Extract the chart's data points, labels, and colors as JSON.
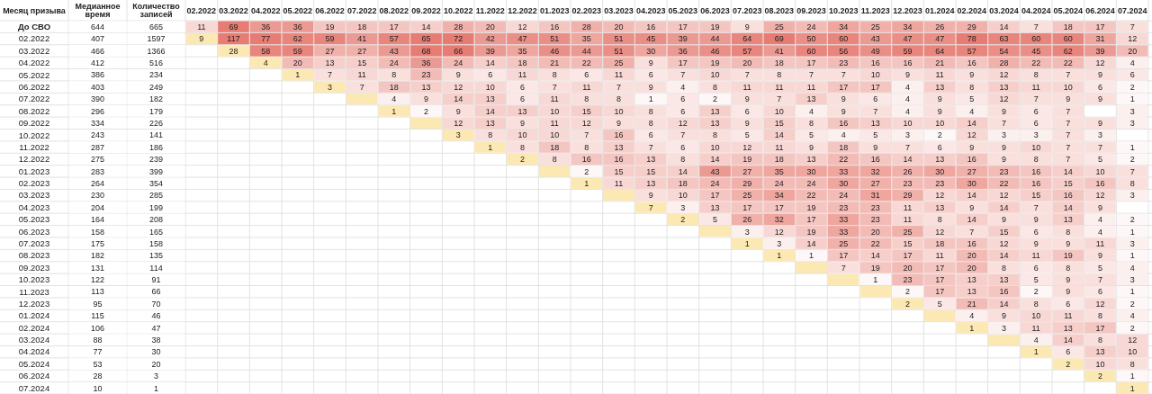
{
  "chart_data": {
    "type": "heatmap",
    "ylabel": "Месяц призыва",
    "categories": [
      "Медианное время",
      "Количество записей",
      "02.2022",
      "03.2022",
      "04.2022",
      "05.2022",
      "06.2022",
      "07.2022",
      "08.2022",
      "09.2022",
      "10.2022",
      "11.2022",
      "12.2022",
      "01.2023",
      "02.2023",
      "03.2023",
      "04.2023",
      "05.2023",
      "06.2023",
      "07.2023",
      "08.2023",
      "09.2023",
      "10.2023",
      "11.2023",
      "12.2023",
      "01.2024",
      "02.2024",
      "03.2024",
      "04.2024",
      "05.2024",
      "06.2024",
      "07.2024"
    ],
    "y_categories": [
      "До СВО",
      "02.2022",
      "03.2022",
      "04.2022",
      "05.2022",
      "06.2022",
      "07.2022",
      "08.2022",
      "09.2022",
      "10.2022",
      "11.2022",
      "12.2022",
      "01.2023",
      "02.2023",
      "03.2023",
      "04.2023",
      "05.2023",
      "06.2023",
      "07.2023",
      "08.2023",
      "09.2023",
      "10.2023",
      "11.2023",
      "12.2023",
      "01.2024",
      "02.2024",
      "03.2024",
      "04.2024",
      "05.2024",
      "06.2024",
      "07.2024"
    ],
    "cells": [
      [
        644,
        665,
        11,
        69,
        36,
        36,
        19,
        18,
        17,
        14,
        28,
        20,
        12,
        16,
        28,
        20,
        16,
        17,
        19,
        9,
        25,
        24,
        34,
        25,
        34,
        26,
        29,
        14,
        7,
        18,
        17,
        7
      ],
      [
        407,
        1597,
        9,
        117,
        77,
        62,
        59,
        41,
        57,
        65,
        72,
        42,
        47,
        51,
        35,
        51,
        45,
        39,
        44,
        64,
        69,
        50,
        60,
        43,
        47,
        47,
        78,
        63,
        60,
        60,
        31,
        12
      ],
      [
        466,
        1366,
        null,
        28,
        58,
        59,
        27,
        27,
        43,
        68,
        66,
        39,
        35,
        46,
        44,
        51,
        30,
        36,
        46,
        57,
        41,
        60,
        56,
        49,
        59,
        64,
        57,
        54,
        45,
        62,
        39,
        20
      ],
      [
        412,
        516,
        null,
        null,
        4,
        20,
        13,
        15,
        24,
        36,
        24,
        14,
        18,
        21,
        22,
        25,
        9,
        17,
        19,
        20,
        18,
        17,
        23,
        16,
        16,
        21,
        16,
        28,
        22,
        22,
        12,
        4
      ],
      [
        386,
        234,
        null,
        null,
        null,
        1,
        7,
        11,
        8,
        23,
        9,
        6,
        11,
        8,
        6,
        11,
        6,
        7,
        10,
        7,
        8,
        7,
        7,
        10,
        9,
        11,
        9,
        12,
        8,
        7,
        9,
        6
      ],
      [
        403,
        249,
        null,
        null,
        null,
        null,
        3,
        7,
        18,
        13,
        12,
        10,
        6,
        7,
        11,
        7,
        9,
        4,
        8,
        11,
        11,
        11,
        17,
        17,
        4,
        13,
        8,
        13,
        11,
        10,
        6,
        2
      ],
      [
        390,
        182,
        null,
        null,
        null,
        null,
        null,
        null,
        4,
        9,
        14,
        13,
        6,
        11,
        8,
        8,
        1,
        6,
        2,
        9,
        7,
        13,
        9,
        6,
        4,
        9,
        5,
        12,
        7,
        9,
        9,
        1
      ],
      [
        296,
        179,
        null,
        null,
        null,
        null,
        null,
        null,
        1,
        2,
        9,
        14,
        13,
        10,
        15,
        10,
        8,
        6,
        13,
        6,
        10,
        4,
        9,
        7,
        4,
        9,
        4,
        9,
        6,
        7,
        null,
        3
      ],
      [
        334,
        226,
        null,
        null,
        null,
        null,
        null,
        null,
        null,
        null,
        12,
        13,
        9,
        11,
        12,
        9,
        8,
        12,
        13,
        9,
        15,
        8,
        16,
        13,
        10,
        10,
        14,
        7,
        6,
        7,
        9,
        3
      ],
      [
        243,
        141,
        null,
        null,
        null,
        null,
        null,
        null,
        null,
        null,
        3,
        8,
        10,
        10,
        7,
        16,
        6,
        7,
        8,
        5,
        14,
        5,
        4,
        5,
        3,
        2,
        12,
        3,
        3,
        7,
        3,
        null
      ],
      [
        287,
        186,
        null,
        null,
        null,
        null,
        null,
        null,
        null,
        null,
        null,
        1,
        8,
        18,
        8,
        13,
        7,
        6,
        10,
        12,
        11,
        9,
        18,
        9,
        7,
        6,
        9,
        9,
        10,
        7,
        7,
        1
      ],
      [
        275,
        239,
        null,
        null,
        null,
        null,
        null,
        null,
        null,
        null,
        null,
        null,
        2,
        8,
        16,
        16,
        13,
        8,
        14,
        19,
        18,
        13,
        22,
        16,
        14,
        13,
        16,
        9,
        8,
        7,
        5,
        2
      ],
      [
        283,
        399,
        null,
        null,
        null,
        null,
        null,
        null,
        null,
        null,
        null,
        null,
        null,
        null,
        2,
        15,
        15,
        14,
        43,
        27,
        35,
        30,
        33,
        32,
        26,
        30,
        27,
        23,
        16,
        14,
        10,
        7
      ],
      [
        264,
        354,
        null,
        null,
        null,
        null,
        null,
        null,
        null,
        null,
        null,
        null,
        null,
        null,
        1,
        11,
        13,
        18,
        24,
        29,
        24,
        24,
        30,
        27,
        23,
        23,
        30,
        22,
        16,
        15,
        16,
        8
      ],
      [
        230,
        285,
        null,
        null,
        null,
        null,
        null,
        null,
        null,
        null,
        null,
        null,
        null,
        null,
        null,
        null,
        9,
        10,
        17,
        25,
        34,
        22,
        24,
        31,
        29,
        12,
        14,
        12,
        15,
        16,
        12,
        3
      ],
      [
        204,
        199,
        null,
        null,
        null,
        null,
        null,
        null,
        null,
        null,
        null,
        null,
        null,
        null,
        null,
        null,
        7,
        3,
        13,
        17,
        17,
        19,
        23,
        23,
        11,
        13,
        9,
        14,
        7,
        14,
        9,
        null
      ],
      [
        164,
        208,
        null,
        null,
        null,
        null,
        null,
        null,
        null,
        null,
        null,
        null,
        null,
        null,
        null,
        null,
        null,
        2,
        5,
        26,
        32,
        17,
        33,
        23,
        11,
        8,
        14,
        9,
        9,
        13,
        4,
        2
      ],
      [
        158,
        165,
        null,
        null,
        null,
        null,
        null,
        null,
        null,
        null,
        null,
        null,
        null,
        null,
        null,
        null,
        null,
        null,
        null,
        3,
        12,
        19,
        33,
        20,
        25,
        12,
        7,
        15,
        6,
        8,
        4,
        1
      ],
      [
        175,
        158,
        null,
        null,
        null,
        null,
        null,
        null,
        null,
        null,
        null,
        null,
        null,
        null,
        null,
        null,
        null,
        null,
        null,
        1,
        3,
        14,
        25,
        22,
        15,
        18,
        16,
        12,
        9,
        9,
        11,
        3
      ],
      [
        182,
        135,
        null,
        null,
        null,
        null,
        null,
        null,
        null,
        null,
        null,
        null,
        null,
        null,
        null,
        null,
        null,
        null,
        null,
        null,
        1,
        1,
        17,
        14,
        17,
        11,
        20,
        14,
        11,
        19,
        9,
        1
      ],
      [
        131,
        114,
        null,
        null,
        null,
        null,
        null,
        null,
        null,
        null,
        null,
        null,
        null,
        null,
        null,
        null,
        null,
        null,
        null,
        null,
        null,
        null,
        7,
        19,
        20,
        17,
        20,
        8,
        6,
        8,
        5,
        4
      ],
      [
        122,
        91,
        null,
        null,
        null,
        null,
        null,
        null,
        null,
        null,
        null,
        null,
        null,
        null,
        null,
        null,
        null,
        null,
        null,
        null,
        null,
        null,
        null,
        1,
        23,
        17,
        13,
        13,
        5,
        9,
        7,
        3
      ],
      [
        113,
        66,
        null,
        null,
        null,
        null,
        null,
        null,
        null,
        null,
        null,
        null,
        null,
        null,
        null,
        null,
        null,
        null,
        null,
        null,
        null,
        null,
        null,
        null,
        2,
        17,
        13,
        16,
        2,
        9,
        6,
        1
      ],
      [
        95,
        70,
        null,
        null,
        null,
        null,
        null,
        null,
        null,
        null,
        null,
        null,
        null,
        null,
        null,
        null,
        null,
        null,
        null,
        null,
        null,
        null,
        null,
        null,
        2,
        5,
        21,
        14,
        8,
        6,
        12,
        2
      ],
      [
        115,
        46,
        null,
        null,
        null,
        null,
        null,
        null,
        null,
        null,
        null,
        null,
        null,
        null,
        null,
        null,
        null,
        null,
        null,
        null,
        null,
        null,
        null,
        null,
        null,
        null,
        4,
        9,
        10,
        11,
        8,
        4
      ],
      [
        106,
        47,
        null,
        null,
        null,
        null,
        null,
        null,
        null,
        null,
        null,
        null,
        null,
        null,
        null,
        null,
        null,
        null,
        null,
        null,
        null,
        null,
        null,
        null,
        null,
        null,
        1,
        3,
        11,
        13,
        17,
        2
      ],
      [
        88,
        38,
        null,
        null,
        null,
        null,
        null,
        null,
        null,
        null,
        null,
        null,
        null,
        null,
        null,
        null,
        null,
        null,
        null,
        null,
        null,
        null,
        null,
        null,
        null,
        null,
        null,
        null,
        4,
        14,
        8,
        12
      ],
      [
        77,
        30,
        null,
        null,
        null,
        null,
        null,
        null,
        null,
        null,
        null,
        null,
        null,
        null,
        null,
        null,
        null,
        null,
        null,
        null,
        null,
        null,
        null,
        null,
        null,
        null,
        null,
        null,
        1,
        6,
        13,
        10
      ],
      [
        53,
        20,
        null,
        null,
        null,
        null,
        null,
        null,
        null,
        null,
        null,
        null,
        null,
        null,
        null,
        null,
        null,
        null,
        null,
        null,
        null,
        null,
        null,
        null,
        null,
        null,
        null,
        null,
        null,
        2,
        10,
        8
      ],
      [
        28,
        3,
        null,
        null,
        null,
        null,
        null,
        null,
        null,
        null,
        null,
        null,
        null,
        null,
        null,
        null,
        null,
        null,
        null,
        null,
        null,
        null,
        null,
        null,
        null,
        null,
        null,
        null,
        null,
        null,
        2,
        1
      ],
      [
        10,
        1,
        null,
        null,
        null,
        null,
        null,
        null,
        null,
        null,
        null,
        null,
        null,
        null,
        null,
        null,
        null,
        null,
        null,
        null,
        null,
        null,
        null,
        null,
        null,
        null,
        null,
        null,
        null,
        null,
        null,
        1
      ]
    ],
    "colors": [
      [
        "#ffffff",
        "#ffffff",
        "#f8d8d5",
        "#e67c73",
        "#eb9a93",
        "#eb9a93",
        "#f4c6c2",
        "#f4c6c2",
        "#f4c6c2",
        "#f6cfcb",
        "#f0b1ab",
        "#f2bbb6",
        "#f8d8d5",
        "#f4c6c2",
        "#f0b1ab",
        "#f2bbb6",
        "#f4c6c2",
        "#f4c6c2",
        "#f4c6c2",
        "#f9e0dd",
        "#f0b1ab",
        "#f2bbb6",
        "#eea69f",
        "#f0b1ab",
        "#eea69f",
        "#f0b1ab",
        "#f0b1ab",
        "#f6cfcb",
        "#f9e0dd",
        "#f4c6c2",
        "#f4c6c2",
        "#f9e0dd"
      ],
      [
        "#ffffff",
        "#ffffff",
        "#fce8b2",
        "#e67c73",
        "#e67c73",
        "#e8867d",
        "#e8867d",
        "#eb9a93",
        "#e8867d",
        "#e67c73",
        "#e67c73",
        "#eb9a93",
        "#e98f87",
        "#e98f87",
        "#eea69f",
        "#e98f87",
        "#e98f87",
        "#eb9a93",
        "#eb9a93",
        "#e8867d",
        "#e67c73",
        "#e98f87",
        "#e8867d",
        "#eb9a93",
        "#e98f87",
        "#e98f87",
        "#e67c73",
        "#e8867d",
        "#e8867d",
        "#e8867d",
        "#eea69f",
        "#f8d8d5"
      ],
      [
        "#ffffff",
        "#ffffff",
        null,
        "#fce8b2",
        "#e8867d",
        "#e8867d",
        "#f0b1ab",
        "#f0b1ab",
        "#eb9a93",
        "#e67c73",
        "#e67c73",
        "#eb9a93",
        "#eea69f",
        "#e98f87",
        "#eb9a93",
        "#e98f87",
        "#eea69f",
        "#eb9a93",
        "#e98f87",
        "#e8867d",
        "#eb9a93",
        "#e8867d",
        "#e8867d",
        "#e98f87",
        "#e8867d",
        "#e8867d",
        "#e8867d",
        "#e98f87",
        "#e98f87",
        "#e8867d",
        "#eb9a93",
        "#f2bbb6"
      ],
      [
        "#ffffff",
        "#ffffff",
        null,
        null,
        "#fce8b2",
        "#f2bbb6",
        "#f6cfcb",
        "#f6cfcb",
        "#f2bbb6",
        "#eb9a93",
        "#f2bbb6",
        "#f6cfcb",
        "#f4c6c2",
        "#f2bbb6",
        "#f2bbb6",
        "#f0b1ab",
        "#f9e0dd",
        "#f4c6c2",
        "#f4c6c2",
        "#f2bbb6",
        "#f4c6c2",
        "#f4c6c2",
        "#f2bbb6",
        "#f4c6c2",
        "#f4c6c2",
        "#f2bbb6",
        "#f4c6c2",
        "#f0b1ab",
        "#f2bbb6",
        "#f2bbb6",
        "#f8d8d5",
        "#fcf0ef"
      ],
      [
        "#ffffff",
        "#ffffff",
        null,
        null,
        null,
        "#fce8b2",
        "#f9e0dd",
        "#f8d8d5",
        "#f9e0dd",
        "#f2bbb6",
        "#f9e0dd",
        "#fbe8e6",
        "#f8d8d5",
        "#f9e0dd",
        "#fbe8e6",
        "#f8d8d5",
        "#fbe8e6",
        "#f9e0dd",
        "#f8d8d5",
        "#f9e0dd",
        "#f9e0dd",
        "#f9e0dd",
        "#f9e0dd",
        "#f8d8d5",
        "#f9e0dd",
        "#f8d8d5",
        "#f9e0dd",
        "#f8d8d5",
        "#f9e0dd",
        "#f9e0dd",
        "#f9e0dd",
        "#fbe8e6"
      ],
      [
        "#ffffff",
        "#ffffff",
        null,
        null,
        null,
        null,
        "#fce8b2",
        "#f9e0dd",
        "#f4c6c2",
        "#f6cfcb",
        "#f8d8d5",
        "#f8d8d5",
        "#fbe8e6",
        "#f9e0dd",
        "#f8d8d5",
        "#f9e0dd",
        "#f9e0dd",
        "#fcf0ef",
        "#f9e0dd",
        "#f8d8d5",
        "#f8d8d5",
        "#f8d8d5",
        "#f4c6c2",
        "#f4c6c2",
        "#fcf0ef",
        "#f6cfcb",
        "#f9e0dd",
        "#f6cfcb",
        "#f8d8d5",
        "#f8d8d5",
        "#fbe8e6",
        "#fdf8f7"
      ],
      [
        "#ffffff",
        "#ffffff",
        null,
        null,
        null,
        null,
        null,
        "#fce8b2",
        "#fcf0ef",
        "#f9e0dd",
        "#f6cfcb",
        "#f6cfcb",
        "#fbe8e6",
        "#f8d8d5",
        "#f9e0dd",
        "#f9e0dd",
        "#fdf8f7",
        "#fbe8e6",
        "#fdf8f7",
        "#f9e0dd",
        "#f9e0dd",
        "#f6cfcb",
        "#f9e0dd",
        "#fbe8e6",
        "#fcf0ef",
        "#f9e0dd",
        "#fbe8e6",
        "#f8d8d5",
        "#f9e0dd",
        "#f9e0dd",
        "#f9e0dd",
        "#fdf8f7"
      ],
      [
        "#ffffff",
        "#ffffff",
        null,
        null,
        null,
        null,
        null,
        null,
        "#fce8b2",
        "#fdf8f7",
        "#f9e0dd",
        "#f6cfcb",
        "#f6cfcb",
        "#f8d8d5",
        "#f6cfcb",
        "#f8d8d5",
        "#f9e0dd",
        "#fbe8e6",
        "#f6cfcb",
        "#fbe8e6",
        "#f8d8d5",
        "#fcf0ef",
        "#f9e0dd",
        "#f9e0dd",
        "#fcf0ef",
        "#f9e0dd",
        "#fcf0ef",
        "#f9e0dd",
        "#fbe8e6",
        "#f9e0dd",
        null,
        "#fcf0ef"
      ],
      [
        "#ffffff",
        "#ffffff",
        null,
        null,
        null,
        null,
        null,
        null,
        null,
        "#fce8b2",
        "#f8d8d5",
        "#f6cfcb",
        "#f9e0dd",
        "#f8d8d5",
        "#f8d8d5",
        "#f9e0dd",
        "#f9e0dd",
        "#f8d8d5",
        "#f6cfcb",
        "#f9e0dd",
        "#f6cfcb",
        "#f9e0dd",
        "#f4c6c2",
        "#f6cfcb",
        "#f8d8d5",
        "#f8d8d5",
        "#f6cfcb",
        "#f9e0dd",
        "#fbe8e6",
        "#f9e0dd",
        "#f9e0dd",
        "#fcf0ef"
      ],
      [
        "#ffffff",
        "#ffffff",
        null,
        null,
        null,
        null,
        null,
        null,
        null,
        null,
        "#fce8b2",
        "#f9e0dd",
        "#f8d8d5",
        "#f8d8d5",
        "#f9e0dd",
        "#f4c6c2",
        "#fbe8e6",
        "#f9e0dd",
        "#f9e0dd",
        "#fbe8e6",
        "#f6cfcb",
        "#fbe8e6",
        "#fcf0ef",
        "#fbe8e6",
        "#fcf0ef",
        "#fdf8f7",
        "#f8d8d5",
        "#fcf0ef",
        "#fcf0ef",
        "#f9e0dd",
        "#fcf0ef",
        null
      ],
      [
        "#ffffff",
        "#ffffff",
        null,
        null,
        null,
        null,
        null,
        null,
        null,
        null,
        null,
        "#fce8b2",
        "#f9e0dd",
        "#f4c6c2",
        "#f9e0dd",
        "#f6cfcb",
        "#f9e0dd",
        "#fbe8e6",
        "#f8d8d5",
        "#f8d8d5",
        "#f8d8d5",
        "#f9e0dd",
        "#f4c6c2",
        "#f9e0dd",
        "#f9e0dd",
        "#fbe8e6",
        "#f9e0dd",
        "#f9e0dd",
        "#f8d8d5",
        "#f9e0dd",
        "#f9e0dd",
        "#fdf8f7"
      ],
      [
        "#ffffff",
        "#ffffff",
        null,
        null,
        null,
        null,
        null,
        null,
        null,
        null,
        null,
        null,
        "#fce8b2",
        "#f9e0dd",
        "#f4c6c2",
        "#f4c6c2",
        "#f6cfcb",
        "#f9e0dd",
        "#f6cfcb",
        "#f4c6c2",
        "#f4c6c2",
        "#f6cfcb",
        "#f2bbb6",
        "#f4c6c2",
        "#f6cfcb",
        "#f6cfcb",
        "#f4c6c2",
        "#f9e0dd",
        "#f9e0dd",
        "#f9e0dd",
        "#fbe8e6",
        "#fdf8f7"
      ],
      [
        "#ffffff",
        "#ffffff",
        null,
        null,
        null,
        null,
        null,
        null,
        null,
        null,
        null,
        null,
        null,
        "#fce8b2",
        "#fdf8f7",
        "#f6cfcb",
        "#f6cfcb",
        "#f6cfcb",
        "#eb9a93",
        "#f0b1ab",
        "#eea69f",
        "#eea69f",
        "#eea69f",
        "#eea69f",
        "#f0b1ab",
        "#eea69f",
        "#f0b1ab",
        "#f2bbb6",
        "#f4c6c2",
        "#f6cfcb",
        "#f8d8d5",
        "#f9e0dd"
      ],
      [
        "#ffffff",
        "#ffffff",
        null,
        null,
        null,
        null,
        null,
        null,
        null,
        null,
        null,
        null,
        null,
        null,
        "#fce8b2",
        "#f8d8d5",
        "#f6cfcb",
        "#f4c6c2",
        "#f2bbb6",
        "#f0b1ab",
        "#f2bbb6",
        "#f2bbb6",
        "#eea69f",
        "#f0b1ab",
        "#f2bbb6",
        "#f2bbb6",
        "#eea69f",
        "#f2bbb6",
        "#f4c6c2",
        "#f6cfcb",
        "#f4c6c2",
        "#f9e0dd"
      ],
      [
        "#ffffff",
        "#ffffff",
        null,
        null,
        null,
        null,
        null,
        null,
        null,
        null,
        null,
        null,
        null,
        null,
        null,
        "#fce8b2",
        "#f9e0dd",
        "#f8d8d5",
        "#f4c6c2",
        "#f0b1ab",
        "#eea69f",
        "#f2bbb6",
        "#f2bbb6",
        "#eea69f",
        "#f0b1ab",
        "#f8d8d5",
        "#f6cfcb",
        "#f8d8d5",
        "#f6cfcb",
        "#f4c6c2",
        "#f8d8d5",
        "#fcf0ef"
      ],
      [
        "#ffffff",
        "#ffffff",
        null,
        null,
        null,
        null,
        null,
        null,
        null,
        null,
        null,
        null,
        null,
        null,
        null,
        null,
        "#fce8b2",
        "#fcf0ef",
        "#f6cfcb",
        "#f4c6c2",
        "#f4c6c2",
        "#f4c6c2",
        "#f2bbb6",
        "#f2bbb6",
        "#f8d8d5",
        "#f6cfcb",
        "#f9e0dd",
        "#f6cfcb",
        "#f9e0dd",
        "#f6cfcb",
        "#f9e0dd",
        null
      ],
      [
        "#ffffff",
        "#ffffff",
        null,
        null,
        null,
        null,
        null,
        null,
        null,
        null,
        null,
        null,
        null,
        null,
        null,
        null,
        null,
        "#fce8b2",
        "#fbe8e6",
        "#f0b1ab",
        "#eea69f",
        "#f4c6c2",
        "#eea69f",
        "#f2bbb6",
        "#f8d8d5",
        "#f9e0dd",
        "#f6cfcb",
        "#f9e0dd",
        "#f9e0dd",
        "#f6cfcb",
        "#fcf0ef",
        "#fdf8f7"
      ],
      [
        "#ffffff",
        "#ffffff",
        null,
        null,
        null,
        null,
        null,
        null,
        null,
        null,
        null,
        null,
        null,
        null,
        null,
        null,
        null,
        null,
        "#fce8b2",
        "#fcf0ef",
        "#f8d8d5",
        "#f4c6c2",
        "#eea69f",
        "#f2bbb6",
        "#f0b1ab",
        "#f8d8d5",
        "#f9e0dd",
        "#f6cfcb",
        "#fbe8e6",
        "#f9e0dd",
        "#fcf0ef",
        "#fdf8f7"
      ],
      [
        "#ffffff",
        "#ffffff",
        null,
        null,
        null,
        null,
        null,
        null,
        null,
        null,
        null,
        null,
        null,
        null,
        null,
        null,
        null,
        null,
        null,
        "#fce8b2",
        "#fcf0ef",
        "#f6cfcb",
        "#f0b1ab",
        "#f2bbb6",
        "#f6cfcb",
        "#f4c6c2",
        "#f4c6c2",
        "#f8d8d5",
        "#f9e0dd",
        "#f9e0dd",
        "#f8d8d5",
        "#fcf0ef"
      ],
      [
        "#ffffff",
        "#ffffff",
        null,
        null,
        null,
        null,
        null,
        null,
        null,
        null,
        null,
        null,
        null,
        null,
        null,
        null,
        null,
        null,
        null,
        null,
        "#fce8b2",
        "#fdf8f7",
        "#f4c6c2",
        "#f6cfcb",
        "#f4c6c2",
        "#f8d8d5",
        "#f2bbb6",
        "#f6cfcb",
        "#f8d8d5",
        "#f4c6c2",
        "#f9e0dd",
        "#fdf8f7"
      ],
      [
        "#ffffff",
        "#ffffff",
        null,
        null,
        null,
        null,
        null,
        null,
        null,
        null,
        null,
        null,
        null,
        null,
        null,
        null,
        null,
        null,
        null,
        null,
        null,
        "#fce8b2",
        "#f9e0dd",
        "#f4c6c2",
        "#f2bbb6",
        "#f4c6c2",
        "#f2bbb6",
        "#f9e0dd",
        "#fbe8e6",
        "#f9e0dd",
        "#fbe8e6",
        "#fcf0ef"
      ],
      [
        "#ffffff",
        "#ffffff",
        null,
        null,
        null,
        null,
        null,
        null,
        null,
        null,
        null,
        null,
        null,
        null,
        null,
        null,
        null,
        null,
        null,
        null,
        null,
        null,
        "#fce8b2",
        "#fdf8f7",
        "#f2bbb6",
        "#f4c6c2",
        "#f6cfcb",
        "#f6cfcb",
        "#fbe8e6",
        "#f9e0dd",
        "#f9e0dd",
        "#fcf0ef"
      ],
      [
        "#ffffff",
        "#ffffff",
        null,
        null,
        null,
        null,
        null,
        null,
        null,
        null,
        null,
        null,
        null,
        null,
        null,
        null,
        null,
        null,
        null,
        null,
        null,
        null,
        null,
        "#fce8b2",
        "#fdf8f7",
        "#f4c6c2",
        "#f6cfcb",
        "#f4c6c2",
        "#fdf8f7",
        "#f9e0dd",
        "#fbe8e6",
        "#fdf8f7"
      ],
      [
        "#ffffff",
        "#ffffff",
        null,
        null,
        null,
        null,
        null,
        null,
        null,
        null,
        null,
        null,
        null,
        null,
        null,
        null,
        null,
        null,
        null,
        null,
        null,
        null,
        null,
        null,
        "#fce8b2",
        "#fbe8e6",
        "#f2bbb6",
        "#f6cfcb",
        "#f9e0dd",
        "#fbe8e6",
        "#f8d8d5",
        "#fdf8f7"
      ],
      [
        "#ffffff",
        "#ffffff",
        null,
        null,
        null,
        null,
        null,
        null,
        null,
        null,
        null,
        null,
        null,
        null,
        null,
        null,
        null,
        null,
        null,
        null,
        null,
        null,
        null,
        null,
        null,
        "#fce8b2",
        "#fcf0ef",
        "#f9e0dd",
        "#f8d8d5",
        "#f8d8d5",
        "#f9e0dd",
        "#fcf0ef"
      ],
      [
        "#ffffff",
        "#ffffff",
        null,
        null,
        null,
        null,
        null,
        null,
        null,
        null,
        null,
        null,
        null,
        null,
        null,
        null,
        null,
        null,
        null,
        null,
        null,
        null,
        null,
        null,
        null,
        null,
        "#fce8b2",
        "#fcf0ef",
        "#f8d8d5",
        "#f6cfcb",
        "#f4c6c2",
        "#fdf8f7"
      ],
      [
        "#ffffff",
        "#ffffff",
        null,
        null,
        null,
        null,
        null,
        null,
        null,
        null,
        null,
        null,
        null,
        null,
        null,
        null,
        null,
        null,
        null,
        null,
        null,
        null,
        null,
        null,
        null,
        null,
        null,
        "#fce8b2",
        "#fcf0ef",
        "#f6cfcb",
        "#f9e0dd",
        "#f8d8d5"
      ],
      [
        "#ffffff",
        "#ffffff",
        null,
        null,
        null,
        null,
        null,
        null,
        null,
        null,
        null,
        null,
        null,
        null,
        null,
        null,
        null,
        null,
        null,
        null,
        null,
        null,
        null,
        null,
        null,
        null,
        null,
        null,
        "#fce8b2",
        "#fbe8e6",
        "#f6cfcb",
        "#f8d8d5"
      ],
      [
        "#ffffff",
        "#ffffff",
        null,
        null,
        null,
        null,
        null,
        null,
        null,
        null,
        null,
        null,
        null,
        null,
        null,
        null,
        null,
        null,
        null,
        null,
        null,
        null,
        null,
        null,
        null,
        null,
        null,
        null,
        null,
        "#fce8b2",
        "#f8d8d5",
        "#f9e0dd"
      ],
      [
        "#ffffff",
        "#ffffff",
        null,
        null,
        null,
        null,
        null,
        null,
        null,
        null,
        null,
        null,
        null,
        null,
        null,
        null,
        null,
        null,
        null,
        null,
        null,
        null,
        null,
        null,
        null,
        null,
        null,
        null,
        null,
        null,
        "#fce8b2",
        "#fdf8f7"
      ],
      [
        "#ffffff",
        "#ffffff",
        null,
        null,
        null,
        null,
        null,
        null,
        null,
        null,
        null,
        null,
        null,
        null,
        null,
        null,
        null,
        null,
        null,
        null,
        null,
        null,
        null,
        null,
        null,
        null,
        null,
        null,
        null,
        null,
        null,
        "#fce8b2"
      ]
    ],
    "data_labels": true,
    "grid": true
  }
}
